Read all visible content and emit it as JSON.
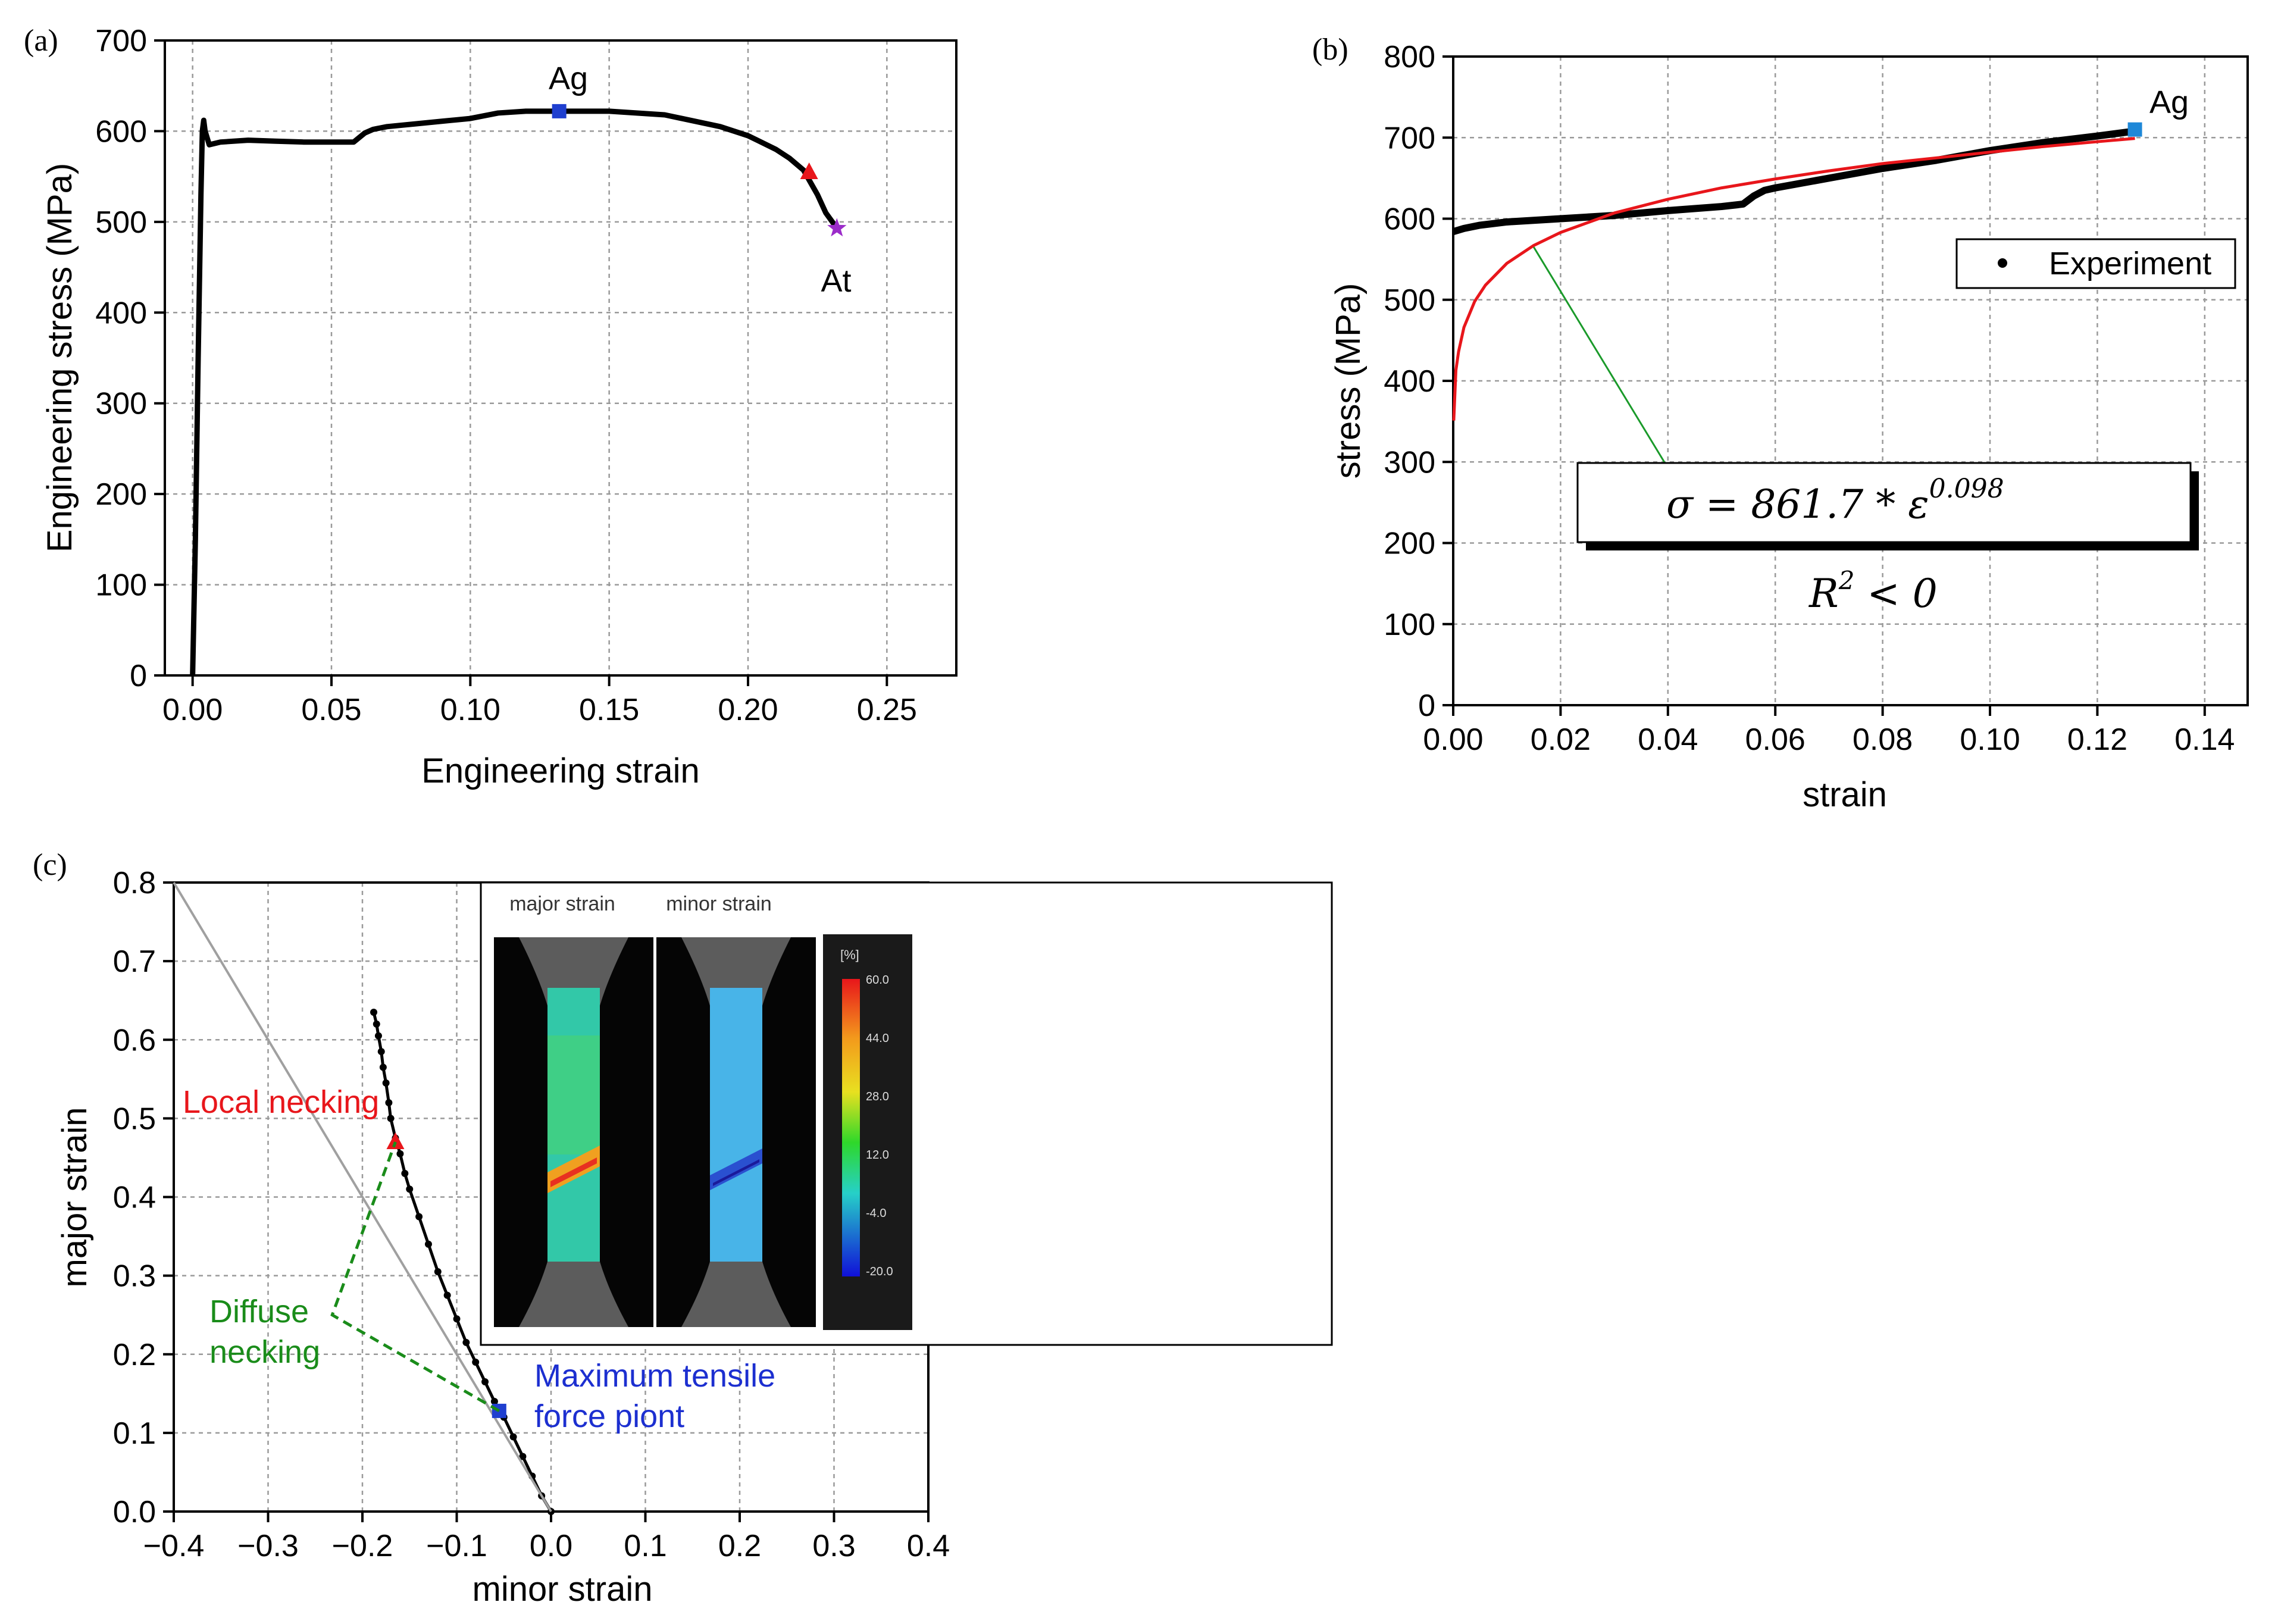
{
  "colors": {
    "experiment": "#000000",
    "fit_curve": "#e8161b",
    "marker_ag": "#1f3fcf",
    "marker_ag_b": "#1e88d8",
    "marker_local_necking": "#e8161b",
    "marker_at": "#9b2cc9",
    "diffuse_path": "#1a8c1a",
    "arrow": "#1a9a2a",
    "forming_line": "#a0a0a0"
  },
  "panels": {
    "a": {
      "tag": "(a)"
    },
    "b": {
      "tag": "(b)",
      "legend_label": "Experiment",
      "equation": "σ = 861.7 * ε",
      "exponent": "0.098",
      "r2": "R",
      "r2_sup": "2",
      "r2_rest": " < 0"
    },
    "c": {
      "tag": "(c)",
      "inset_major": "major strain",
      "inset_minor": "minor strain",
      "colorbar_unit": "[%]",
      "colorbar_ticks": [
        "60.0",
        "44.0",
        "28.0",
        "12.0",
        "-4.0",
        "-20.0"
      ]
    }
  },
  "chart_data": [
    {
      "type": "line",
      "xlabel": "Engineering strain",
      "ylabel": "Engineering stress (MPa)",
      "xlim": [
        -0.01,
        0.275
      ],
      "ylim": [
        0,
        700
      ],
      "xticks": [
        "0.00",
        "0.05",
        "0.10",
        "0.15",
        "0.20",
        "0.25"
      ],
      "yticks": [
        "0",
        "100",
        "200",
        "300",
        "400",
        "500",
        "600",
        "700"
      ],
      "grid": true,
      "series": [
        {
          "x": [
            0.0,
            0.001,
            0.002,
            0.003,
            0.0035,
            0.004,
            0.0045,
            0.006,
            0.01,
            0.02,
            0.03,
            0.04,
            0.05,
            0.058,
            0.062,
            0.065,
            0.07,
            0.08,
            0.09,
            0.1,
            0.11,
            0.12,
            0.132,
            0.15,
            0.17,
            0.19,
            0.2,
            0.21,
            0.215,
            0.22,
            0.225,
            0.228,
            0.232
          ],
          "y": [
            0,
            150,
            350,
            530,
            600,
            612,
            600,
            585,
            588,
            590,
            589,
            588,
            588,
            588,
            598,
            602,
            605,
            608,
            611,
            614,
            620,
            622,
            622,
            622,
            618,
            605,
            595,
            580,
            570,
            557,
            530,
            510,
            493
          ]
        }
      ],
      "markers": [
        {
          "label": "Ag",
          "x": 0.132,
          "y": 622,
          "shape": "square"
        },
        {
          "label": "",
          "x": 0.222,
          "y": 555,
          "shape": "triangle"
        },
        {
          "label": "At",
          "x": 0.232,
          "y": 493,
          "shape": "star"
        }
      ]
    },
    {
      "type": "line",
      "xlabel": "strain",
      "ylabel": "stress (MPa)",
      "xlim": [
        0,
        0.148
      ],
      "ylim": [
        0,
        800
      ],
      "xticks": [
        "0.00",
        "0.02",
        "0.04",
        "0.06",
        "0.08",
        "0.10",
        "0.12",
        "0.14"
      ],
      "yticks": [
        "0",
        "100",
        "200",
        "300",
        "400",
        "500",
        "600",
        "700",
        "800"
      ],
      "grid": true,
      "series": [
        {
          "name": "Experiment",
          "x": [
            0.0,
            0.002,
            0.005,
            0.01,
            0.02,
            0.03,
            0.04,
            0.05,
            0.054,
            0.056,
            0.058,
            0.06,
            0.07,
            0.08,
            0.09,
            0.1,
            0.11,
            0.12,
            0.127
          ],
          "y": [
            584,
            588,
            592,
            596,
            600,
            604,
            610,
            615,
            618,
            628,
            635,
            638,
            650,
            662,
            672,
            684,
            694,
            702,
            708
          ]
        },
        {
          "x": [
            0.0001,
            0.0005,
            0.001,
            0.002,
            0.004,
            0.006,
            0.01,
            0.015,
            0.02,
            0.03,
            0.04,
            0.05,
            0.06,
            0.07,
            0.08,
            0.09,
            0.1,
            0.11,
            0.12,
            0.127
          ],
          "y": [
            351,
            413,
            436,
            466,
            498,
            518,
            545,
            567,
            583,
            607,
            624,
            638,
            649,
            659,
            668,
            675,
            682,
            689,
            695,
            699
          ]
        }
      ],
      "markers": [
        {
          "label": "Ag",
          "x": 0.127,
          "y": 710,
          "shape": "square"
        }
      ]
    },
    {
      "type": "scatter",
      "xlabel": "minor strain",
      "ylabel": "major strain",
      "xlim": [
        -0.4,
        0.4
      ],
      "ylim": [
        0,
        0.8
      ],
      "xticks": [
        "−0.4",
        "−0.3",
        "−0.2",
        "−0.1",
        "0.0",
        "0.1",
        "0.2",
        "0.3",
        "0.4"
      ],
      "yticks": [
        "0.0",
        "0.1",
        "0.2",
        "0.3",
        "0.4",
        "0.5",
        "0.6",
        "0.7",
        "0.8"
      ],
      "grid": true,
      "series": [
        {
          "x": [
            0.0,
            -0.01,
            -0.02,
            -0.03,
            -0.04,
            -0.05,
            -0.06,
            -0.07,
            -0.08,
            -0.09,
            -0.1,
            -0.11,
            -0.12,
            -0.13,
            -0.14,
            -0.15,
            -0.155,
            -0.16,
            -0.165,
            -0.17,
            -0.172,
            -0.175,
            -0.178,
            -0.18,
            -0.183,
            -0.185,
            -0.188
          ],
          "y": [
            0.0,
            0.02,
            0.045,
            0.07,
            0.095,
            0.12,
            0.14,
            0.165,
            0.19,
            0.215,
            0.245,
            0.275,
            0.305,
            0.34,
            0.375,
            0.41,
            0.43,
            0.455,
            0.475,
            0.5,
            0.52,
            0.545,
            0.565,
            0.585,
            0.605,
            0.62,
            0.635
          ]
        },
        {
          "x": [
            -0.4,
            0.0
          ],
          "y": [
            0.8,
            0.0
          ]
        }
      ],
      "markers": [
        {
          "label": "Maximum tensile force piont",
          "x": -0.055,
          "y": 0.128,
          "shape": "square"
        },
        {
          "label": "Local necking",
          "x": -0.165,
          "y": 0.47,
          "shape": "triangle"
        }
      ],
      "annotations": [
        {
          "text": "Local necking"
        },
        {
          "text": "Diffuse necking",
          "lines": [
            "Diffuse",
            "necking"
          ]
        },
        {
          "text": "Maximum tensile force piont",
          "lines": [
            "Maximum tensile",
            "force piont"
          ]
        }
      ]
    }
  ]
}
